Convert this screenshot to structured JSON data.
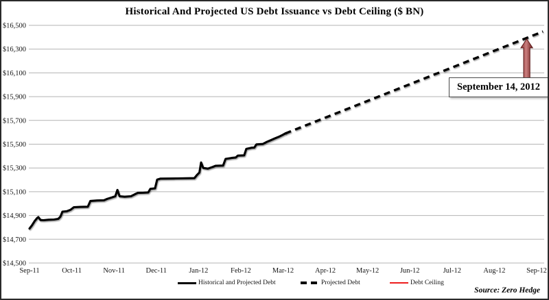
{
  "figure": {
    "title": "Historical And Projected US Debt Issuance vs Debt Ceiling ($ BN)",
    "source_note": "Source: Zero Hedge",
    "annotation_label": "September 14, 2012"
  },
  "chart_data": {
    "type": "line",
    "title": "Historical And Projected US Debt Issuance vs Debt Ceiling ($ BN)",
    "xlabel": "",
    "ylabel": "",
    "x_unit": "months since Sep-2011",
    "x_tick_labels": [
      "Sep-11",
      "Oct-11",
      "Nov-11",
      "Dec-11",
      "Jan-12",
      "Feb-12",
      "Mar-12",
      "Apr-12",
      "May-12",
      "Jun-12",
      "Jul-12",
      "Aug-12",
      "Sep-12"
    ],
    "x_tick_positions": [
      0,
      1,
      2,
      3,
      4,
      5,
      6,
      7,
      8,
      9,
      10,
      11,
      12
    ],
    "xlim": [
      0,
      12.15
    ],
    "ylim": [
      14500,
      16500
    ],
    "y_ticks": [
      {
        "value": 14500,
        "label": "$14,500"
      },
      {
        "value": 14700,
        "label": "$14,700"
      },
      {
        "value": 14900,
        "label": "$14,900"
      },
      {
        "value": 15100,
        "label": "$15,100"
      },
      {
        "value": 15300,
        "label": "$15,300"
      },
      {
        "value": 15500,
        "label": "$15,500"
      },
      {
        "value": 15700,
        "label": "$15,700"
      },
      {
        "value": 15900,
        "label": "$15,900"
      },
      {
        "value": 16100,
        "label": "$16,100"
      },
      {
        "value": 16300,
        "label": "$16,300"
      },
      {
        "value": 16500,
        "label": "$16,500"
      }
    ],
    "grid": "horizontal",
    "legend_position": "bottom",
    "colors": {
      "line": "#000000",
      "ceiling": "#ed1c1c",
      "grid": "#b3b3b3",
      "arrow_dark": "#6f1d1d",
      "arrow_mid": "#c97f7f",
      "arrow_light": "#8a3030"
    },
    "series": [
      {
        "name": "Historical and Projected Debt",
        "style": "solid",
        "color": "#000000",
        "points": [
          [
            0.0,
            14790
          ],
          [
            0.06,
            14818
          ],
          [
            0.12,
            14852
          ],
          [
            0.18,
            14878
          ],
          [
            0.21,
            14886
          ],
          [
            0.26,
            14862
          ],
          [
            0.33,
            14860
          ],
          [
            0.45,
            14864
          ],
          [
            0.58,
            14866
          ],
          [
            0.68,
            14872
          ],
          [
            0.73,
            14890
          ],
          [
            0.78,
            14932
          ],
          [
            0.88,
            14936
          ],
          [
            0.97,
            14948
          ],
          [
            1.05,
            14970
          ],
          [
            1.2,
            14972
          ],
          [
            1.38,
            14974
          ],
          [
            1.44,
            15022
          ],
          [
            1.6,
            15026
          ],
          [
            1.76,
            15028
          ],
          [
            1.84,
            15040
          ],
          [
            1.95,
            15052
          ],
          [
            2.03,
            15062
          ],
          [
            2.08,
            15115
          ],
          [
            2.13,
            15062
          ],
          [
            2.25,
            15058
          ],
          [
            2.4,
            15062
          ],
          [
            2.49,
            15078
          ],
          [
            2.56,
            15090
          ],
          [
            2.7,
            15092
          ],
          [
            2.81,
            15094
          ],
          [
            2.86,
            15124
          ],
          [
            2.97,
            15128
          ],
          [
            3.02,
            15202
          ],
          [
            3.1,
            15210
          ],
          [
            3.5,
            15212
          ],
          [
            3.9,
            15214
          ],
          [
            3.96,
            15240
          ],
          [
            4.02,
            15262
          ],
          [
            4.06,
            15346
          ],
          [
            4.11,
            15300
          ],
          [
            4.22,
            15294
          ],
          [
            4.33,
            15308
          ],
          [
            4.4,
            15318
          ],
          [
            4.58,
            15320
          ],
          [
            4.64,
            15376
          ],
          [
            4.78,
            15384
          ],
          [
            4.88,
            15388
          ],
          [
            4.93,
            15404
          ],
          [
            5.08,
            15406
          ],
          [
            5.13,
            15460
          ],
          [
            5.25,
            15470
          ],
          [
            5.32,
            15472
          ],
          [
            5.37,
            15498
          ],
          [
            5.52,
            15502
          ],
          [
            5.62,
            15520
          ],
          [
            5.7,
            15532
          ],
          [
            5.8,
            15548
          ],
          [
            5.9,
            15562
          ],
          [
            6.0,
            15580
          ],
          [
            6.05,
            15590
          ]
        ]
      },
      {
        "name": "Projected Debt",
        "style": "dashed",
        "color": "#000000",
        "points": [
          [
            6.05,
            15590
          ],
          [
            12.15,
            16448
          ]
        ]
      },
      {
        "name": "Debt Ceiling",
        "style": "solid",
        "color": "#ed1c1c",
        "points": [
          [
            0,
            16394
          ],
          [
            12.15,
            16394
          ]
        ]
      }
    ],
    "annotation": {
      "text": "September 14, 2012",
      "points_to": "intersection of Projected Debt with Debt Ceiling",
      "ceiling_value": 16394
    }
  }
}
